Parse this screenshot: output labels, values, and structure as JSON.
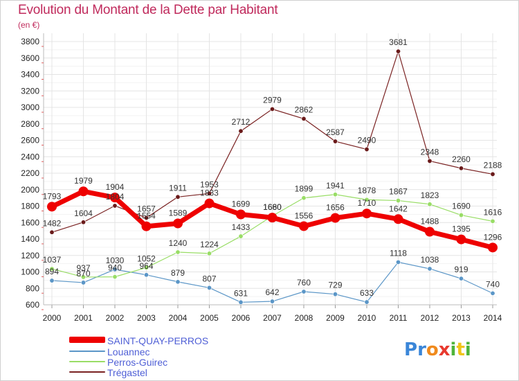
{
  "header": {
    "title": "Evolution du Montant de la Dette par Habitant",
    "unit": "(en €)"
  },
  "chart_data": {
    "type": "line",
    "title": "Evolution du Montant de la Dette par Habitant",
    "subtitle": "(en €)",
    "xlabel": "",
    "ylabel": "",
    "x": [
      "2000",
      "2001",
      "2002",
      "2003",
      "2004",
      "2005",
      "2006",
      "2007",
      "2008",
      "2009",
      "2010",
      "2011",
      "2012",
      "2013",
      "2014"
    ],
    "ylim": [
      600,
      3800
    ],
    "yticks": [
      600,
      800,
      1000,
      1200,
      1400,
      1600,
      1800,
      2000,
      2200,
      2400,
      2600,
      2800,
      3000,
      3200,
      3400,
      3600,
      3800
    ],
    "grid": true,
    "legend_position": "bottom-left",
    "series": [
      {
        "name": "SAINT-QUAY-PERROS",
        "color": "#ee0000",
        "values": [
          1793,
          1979,
          1904,
          1554,
          1589,
          1833,
          1699,
          1660,
          1556,
          1656,
          1710,
          1642,
          1488,
          1395,
          1296
        ]
      },
      {
        "name": "Louannec",
        "color": "#5b96c7",
        "values": [
          894,
          870,
          1030,
          964,
          879,
          807,
          631,
          642,
          760,
          729,
          633,
          1118,
          1038,
          919,
          740
        ]
      },
      {
        "name": "Perros-Guirec",
        "color": "#99dd66",
        "values": [
          1037,
          937,
          940,
          1052,
          1240,
          1224,
          1433,
          1680,
          1899,
          1941,
          1878,
          1867,
          1823,
          1690,
          1616
        ]
      },
      {
        "name": "Trégastel",
        "color": "#7a2222",
        "values": [
          1482,
          1604,
          1804,
          1657,
          1911,
          1953,
          2712,
          2979,
          2862,
          2587,
          2490,
          3681,
          2348,
          2260,
          2188
        ]
      }
    ]
  },
  "legend": {
    "items": [
      {
        "label": "SAINT-QUAY-PERROS",
        "color": "#ee0000"
      },
      {
        "label": "Louannec",
        "color": "#5b96c7"
      },
      {
        "label": "Perros-Guirec",
        "color": "#99dd66"
      },
      {
        "label": "Trégastel",
        "color": "#7a2222"
      }
    ]
  },
  "logo": {
    "letters": [
      "P",
      "r",
      "o",
      "x",
      "i",
      "t",
      "i"
    ],
    "colors": [
      "#3a86d8",
      "#3a86d8",
      "#f08a1d",
      "#e8392e",
      "#4fb43a",
      "#f0c419",
      "#4fb43a"
    ]
  }
}
